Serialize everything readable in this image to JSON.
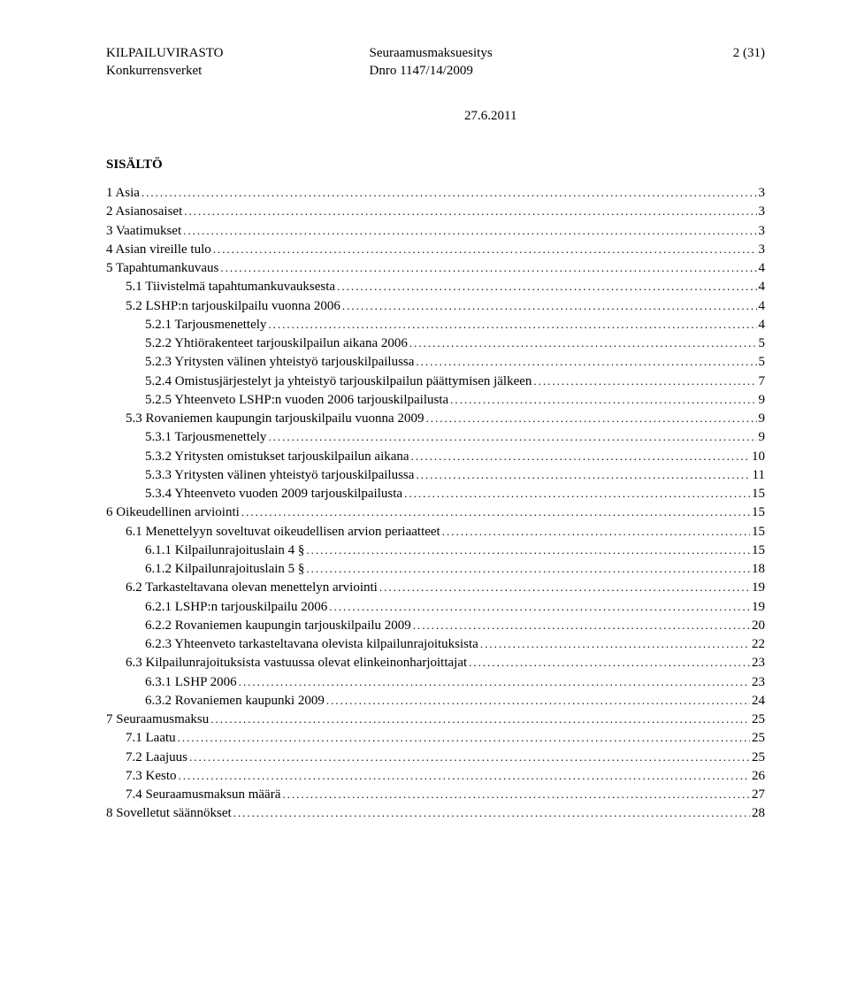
{
  "header": {
    "org_line1": "KILPAILUVIRASTO",
    "org_line2": "Konkurrensverket",
    "doc_type": "Seuraamusmaksuesitys",
    "doc_ref": "Dnro 1147/14/2009",
    "page_info": "2 (31)",
    "date": "27.6.2011"
  },
  "toc": {
    "title": "SISÄLTÖ",
    "entries": [
      {
        "indent": 0,
        "label": "1 Asia",
        "page": "3"
      },
      {
        "indent": 0,
        "label": "2 Asianosaiset",
        "page": "3"
      },
      {
        "indent": 0,
        "label": "3 Vaatimukset",
        "page": "3"
      },
      {
        "indent": 0,
        "label": "4 Asian vireille tulo",
        "page": "3"
      },
      {
        "indent": 0,
        "label": "5 Tapahtumankuvaus",
        "page": "4"
      },
      {
        "indent": 1,
        "label": "5.1 Tiivistelmä tapahtumankuvauksesta",
        "page": "4"
      },
      {
        "indent": 1,
        "label": "5.2 LSHP:n tarjouskilpailu vuonna 2006",
        "page": "4"
      },
      {
        "indent": 2,
        "label": "5.2.1 Tarjousmenettely",
        "page": "4"
      },
      {
        "indent": 2,
        "label": "5.2.2 Yhtiörakenteet tarjouskilpailun aikana 2006",
        "page": "5"
      },
      {
        "indent": 2,
        "label": "5.2.3 Yritysten välinen yhteistyö tarjouskilpailussa",
        "page": "5"
      },
      {
        "indent": 2,
        "label": "5.2.4 Omistusjärjestelyt ja yhteistyö tarjouskilpailun päättymisen jälkeen",
        "page": "7"
      },
      {
        "indent": 2,
        "label": "5.2.5 Yhteenveto LSHP:n vuoden 2006 tarjouskilpailusta",
        "page": "9"
      },
      {
        "indent": 1,
        "label": "5.3 Rovaniemen kaupungin tarjouskilpailu vuonna 2009",
        "page": "9"
      },
      {
        "indent": 2,
        "label": "5.3.1 Tarjousmenettely",
        "page": "9"
      },
      {
        "indent": 2,
        "label": "5.3.2 Yritysten omistukset tarjouskilpailun aikana",
        "page": "10"
      },
      {
        "indent": 2,
        "label": "5.3.3 Yritysten välinen yhteistyö tarjouskilpailussa",
        "page": "11"
      },
      {
        "indent": 2,
        "label": "5.3.4 Yhteenveto vuoden 2009 tarjouskilpailusta",
        "page": "15"
      },
      {
        "indent": 0,
        "label": "6 Oikeudellinen arviointi",
        "page": "15"
      },
      {
        "indent": 1,
        "label": "6.1 Menettelyyn soveltuvat oikeudellisen arvion periaatteet",
        "page": "15"
      },
      {
        "indent": 2,
        "label": "6.1.1 Kilpailunrajoituslain 4 §",
        "page": "15"
      },
      {
        "indent": 2,
        "label": "6.1.2 Kilpailunrajoituslain 5 §",
        "page": "18"
      },
      {
        "indent": 1,
        "label": "6.2 Tarkasteltavana olevan menettelyn arviointi",
        "page": "19"
      },
      {
        "indent": 2,
        "label": "6.2.1 LSHP:n tarjouskilpailu 2006",
        "page": "19"
      },
      {
        "indent": 2,
        "label": "6.2.2 Rovaniemen kaupungin tarjouskilpailu 2009",
        "page": "20"
      },
      {
        "indent": 2,
        "label": "6.2.3 Yhteenveto tarkasteltavana olevista kilpailunrajoituksista",
        "page": "22"
      },
      {
        "indent": 1,
        "label": "6.3 Kilpailunrajoituksista vastuussa olevat elinkeinonharjoittajat",
        "page": "23"
      },
      {
        "indent": 2,
        "label": "6.3.1 LSHP 2006",
        "page": "23"
      },
      {
        "indent": 2,
        "label": "6.3.2 Rovaniemen kaupunki 2009",
        "page": "24"
      },
      {
        "indent": 0,
        "label": "7 Seuraamusmaksu",
        "page": "25"
      },
      {
        "indent": 1,
        "label": "7.1 Laatu",
        "page": "25"
      },
      {
        "indent": 1,
        "label": "7.2 Laajuus",
        "page": "25"
      },
      {
        "indent": 1,
        "label": "7.3 Kesto",
        "page": "26"
      },
      {
        "indent": 1,
        "label": "7.4 Seuraamusmaksun määrä",
        "page": "27"
      },
      {
        "indent": 0,
        "label": "8 Sovelletut säännökset",
        "page": "28"
      }
    ]
  }
}
